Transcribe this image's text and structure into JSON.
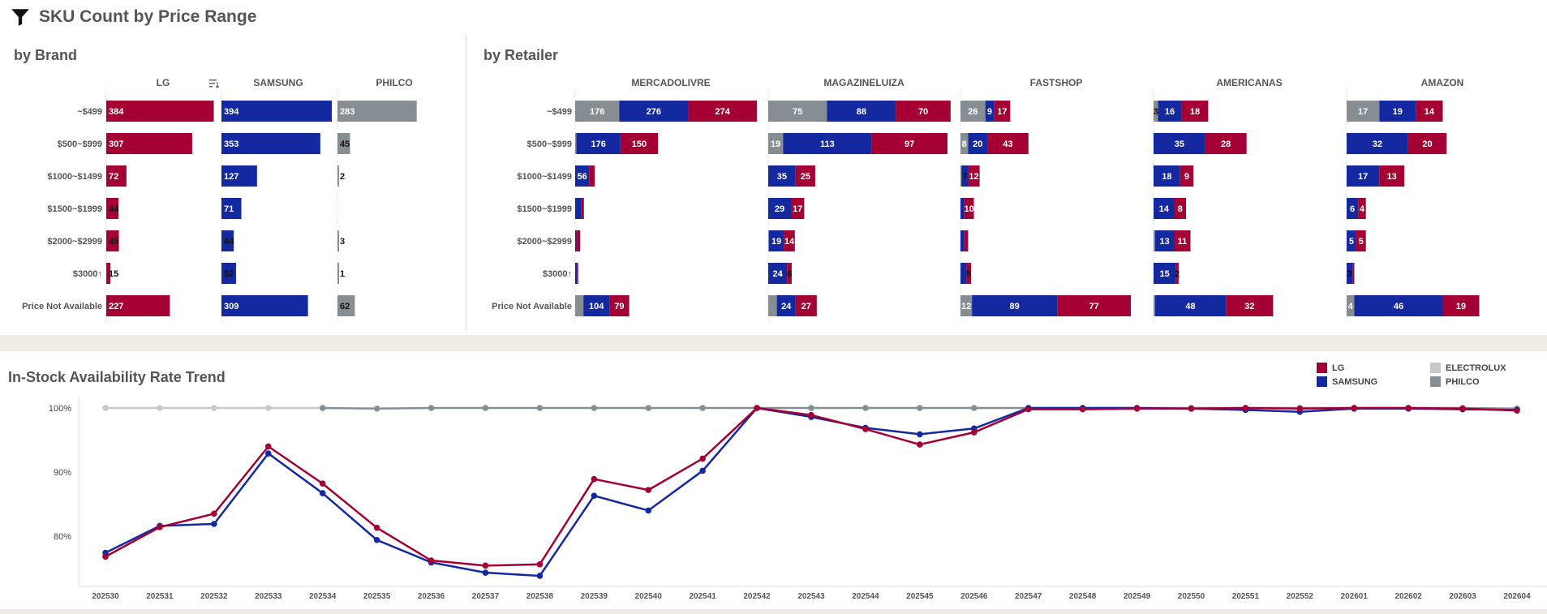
{
  "header": {
    "title": "SKU Count by Price Range",
    "filter_icon": "filter-icon"
  },
  "colors": {
    "LG": "#a50034",
    "SAMSUNG": "#1428a0",
    "PHILCO": "#878e93",
    "ELECTROLUX": "#c8c8c8"
  },
  "brand_section": {
    "title": "by Brand",
    "sort_icon": "sort-descending-icon"
  },
  "retailer_section": {
    "title": "by Retailer"
  },
  "trend_section": {
    "title": "In-Stock Availability Rate Trend"
  },
  "legend": [
    {
      "name": "LG",
      "color": "#a50034"
    },
    {
      "name": "ELECTROLUX",
      "color": "#c8c8c8"
    },
    {
      "name": "SAMSUNG",
      "color": "#1428a0"
    },
    {
      "name": "PHILCO",
      "color": "#878e93"
    }
  ],
  "chart_data": [
    {
      "type": "bar",
      "title": "by Brand",
      "orientation": "horizontal",
      "categories": [
        "~$499",
        "$500~$999",
        "$1000~$1499",
        "$1500~$1999",
        "$2000~$2999",
        "$3000↑",
        "Price Not Available"
      ],
      "panels": [
        {
          "name": "LG",
          "color": "#a50034",
          "values": [
            384,
            307,
            72,
            44,
            45,
            15,
            227
          ]
        },
        {
          "name": "SAMSUNG",
          "color": "#1428a0",
          "values": [
            394,
            353,
            127,
            71,
            44,
            52,
            309
          ]
        },
        {
          "name": "PHILCO",
          "color": "#878e93",
          "values": [
            283,
            45,
            2,
            0,
            3,
            1,
            62
          ]
        }
      ]
    },
    {
      "type": "bar",
      "title": "by Retailer",
      "orientation": "horizontal",
      "stacked": true,
      "stack_order": [
        "PHILCO",
        "SAMSUNG",
        "LG"
      ],
      "categories": [
        "~$499",
        "$500~$999",
        "$1000~$1499",
        "$1500~$1999",
        "$2000~$2999",
        "$3000↑",
        "Price Not Available"
      ],
      "panels": [
        {
          "name": "MERCADOLIVRE",
          "series": {
            "PHILCO": [
              176,
              5,
              0,
              0,
              0,
              0,
              33
            ],
            "SAMSUNG": [
              276,
              176,
              56,
              25,
              5,
              9,
              104
            ],
            "LG": [
              274,
              150,
              22,
              10,
              15,
              3,
              79
            ]
          },
          "labels": {
            "PHILCO": [
              "176",
              "",
              "",
              "",
              "",
              "",
              ""
            ],
            "SAMSUNG": [
              "276",
              "176",
              "56",
              "",
              "",
              "",
              "104"
            ],
            "LG": [
              "274",
              "150",
              "",
              "",
              "",
              "",
              "79"
            ]
          }
        },
        {
          "name": "MAGAZINELUIZA",
          "series": {
            "PHILCO": [
              75,
              19,
              0,
              0,
              1,
              0,
              11
            ],
            "SAMSUNG": [
              88,
              113,
              35,
              29,
              19,
              24,
              24
            ],
            "LG": [
              70,
              97,
              25,
              17,
              14,
              6,
              27
            ]
          },
          "labels": {
            "PHILCO": [
              "75",
              "19",
              "",
              "",
              "",
              "",
              ""
            ],
            "SAMSUNG": [
              "88",
              "113",
              "35",
              "29",
              "19",
              "24",
              "24"
            ],
            "LG": [
              "70",
              "97",
              "25",
              "17",
              "14",
              "6",
              "27"
            ]
          }
        },
        {
          "name": "FASTSHOP",
          "series": {
            "PHILCO": [
              26,
              8,
              1,
              0,
              0,
              0,
              12
            ],
            "SAMSUNG": [
              9,
              20,
              7,
              4,
              4,
              6,
              89
            ],
            "LG": [
              17,
              43,
              12,
              10,
              4,
              5,
              77
            ]
          },
          "labels": {
            "PHILCO": [
              "26",
              "8",
              "",
              "",
              "",
              "",
              "12"
            ],
            "SAMSUNG": [
              "9",
              "20",
              "7",
              "",
              "",
              "",
              "89"
            ],
            "LG": [
              "17",
              "43",
              "12",
              "10",
              "",
              "5",
              "77"
            ]
          }
        },
        {
          "name": "AMERICANAS",
          "series": {
            "PHILCO": [
              3,
              0,
              0,
              0,
              1,
              0,
              1
            ],
            "SAMSUNG": [
              16,
              35,
              18,
              14,
              13,
              15,
              48
            ],
            "LG": [
              18,
              28,
              9,
              8,
              11,
              2,
              32
            ]
          },
          "labels": {
            "PHILCO": [
              "3",
              "",
              "",
              "",
              "",
              "",
              ""
            ],
            "SAMSUNG": [
              "16",
              "35",
              "18",
              "14",
              "13",
              "15",
              "48"
            ],
            "LG": [
              "18",
              "28",
              "9",
              "8",
              "11",
              "2",
              "32"
            ]
          }
        },
        {
          "name": "AMAZON",
          "series": {
            "PHILCO": [
              17,
              0,
              0,
              0,
              0,
              0,
              4
            ],
            "SAMSUNG": [
              19,
              32,
              17,
              6,
              5,
              3,
              46
            ],
            "LG": [
              14,
              20,
              13,
              4,
              5,
              1,
              19
            ]
          },
          "labels": {
            "PHILCO": [
              "17",
              "",
              "",
              "",
              "",
              "",
              "4"
            ],
            "SAMSUNG": [
              "19",
              "32",
              "17",
              "6",
              "5",
              "3",
              "46"
            ],
            "LG": [
              "14",
              "20",
              "13",
              "4",
              "5",
              "",
              "19"
            ]
          }
        }
      ]
    },
    {
      "type": "line",
      "title": "In-Stock Availability Rate Trend",
      "x": [
        "202530",
        "202531",
        "202532",
        "202533",
        "202534",
        "202535",
        "202536",
        "202537",
        "202538",
        "202539",
        "202540",
        "202541",
        "202542",
        "202543",
        "202544",
        "202545",
        "202546",
        "202547",
        "202548",
        "202549",
        "202550",
        "202551",
        "202552",
        "202601",
        "202602",
        "202603",
        "202604"
      ],
      "yticks": [
        "80%",
        "90%",
        "100%"
      ],
      "ylim": [
        72,
        100.5
      ],
      "legend_position": "top-right",
      "series": [
        {
          "name": "ELECTROLUX",
          "color": "#c8c8c8",
          "values": [
            100,
            100,
            100,
            100,
            100,
            null,
            null,
            null,
            null,
            null,
            null,
            null,
            null,
            null,
            null,
            null,
            null,
            null,
            null,
            null,
            null,
            null,
            null,
            null,
            null,
            null,
            null
          ]
        },
        {
          "name": "PHILCO",
          "color": "#878e93",
          "values": [
            null,
            null,
            null,
            null,
            100,
            99.9,
            100,
            100,
            100,
            100,
            100,
            100,
            100,
            100,
            100,
            100,
            100,
            100,
            100,
            100,
            100,
            100,
            100,
            100,
            100,
            100,
            99.9
          ]
        },
        {
          "name": "SAMSUNG",
          "color": "#1428a0",
          "values": [
            77.4,
            81.6,
            81.9,
            92.9,
            86.7,
            79.4,
            75.9,
            74.3,
            73.8,
            86.3,
            84.0,
            90.2,
            100,
            98.6,
            96.9,
            95.9,
            96.8,
            100,
            100,
            100,
            99.9,
            99.7,
            99.4,
            99.9,
            99.9,
            99.8,
            99.7
          ]
        },
        {
          "name": "LG",
          "color": "#a50034",
          "values": [
            76.8,
            81.4,
            83.5,
            94.0,
            88.2,
            81.3,
            76.2,
            75.4,
            75.6,
            88.9,
            87.2,
            92.1,
            100,
            98.9,
            96.7,
            94.3,
            96.2,
            99.8,
            99.8,
            99.9,
            99.9,
            100,
            99.9,
            100,
            100,
            99.9,
            99.6
          ]
        }
      ]
    }
  ]
}
